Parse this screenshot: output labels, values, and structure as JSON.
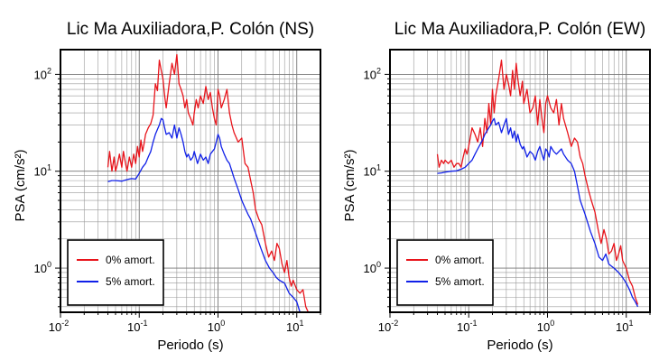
{
  "chart_data": [
    {
      "type": "line",
      "title": "Lic Ma Auxiliadora,P. Colón (NS)",
      "xlabel": "Periodo (s)",
      "ylabel": "PSA (cm/s²)",
      "xscale": "log",
      "yscale": "log",
      "xlim": [
        0.01,
        20
      ],
      "ylim": [
        0.35,
        180
      ],
      "grid": true,
      "legend_position": "bottom-left",
      "colors": {
        "0% amort.": "#e8141b",
        "5% amort.": "#1020e8"
      },
      "series": [
        {
          "name": "0% amort.",
          "x": [
            0.04,
            0.042,
            0.045,
            0.048,
            0.05,
            0.053,
            0.056,
            0.06,
            0.063,
            0.067,
            0.07,
            0.075,
            0.08,
            0.085,
            0.09,
            0.095,
            0.1,
            0.105,
            0.11,
            0.115,
            0.12,
            0.13,
            0.14,
            0.15,
            0.16,
            0.17,
            0.18,
            0.19,
            0.2,
            0.21,
            0.22,
            0.24,
            0.26,
            0.28,
            0.3,
            0.32,
            0.34,
            0.36,
            0.38,
            0.4,
            0.42,
            0.45,
            0.48,
            0.5,
            0.53,
            0.56,
            0.6,
            0.65,
            0.7,
            0.75,
            0.8,
            0.85,
            0.9,
            0.95,
            1.0,
            1.05,
            1.1,
            1.2,
            1.3,
            1.4,
            1.5,
            1.6,
            1.8,
            2.0,
            2.2,
            2.4,
            2.6,
            2.8,
            3.0,
            3.3,
            3.6,
            4.0,
            4.4,
            4.8,
            5.2,
            5.6,
            6.0,
            6.5,
            7.0,
            7.5,
            8.0,
            8.5,
            9.0,
            10.0,
            11.0,
            12.0,
            13.0,
            14.0
          ],
          "y": [
            11,
            16,
            10,
            14,
            10,
            12,
            15,
            11,
            16,
            12,
            10,
            14,
            11,
            15,
            12,
            18,
            14,
            21,
            16,
            19,
            24,
            28,
            31,
            38,
            80,
            68,
            140,
            110,
            90,
            60,
            45,
            80,
            130,
            100,
            160,
            80,
            70,
            60,
            45,
            55,
            40,
            35,
            30,
            40,
            55,
            45,
            60,
            50,
            75,
            55,
            65,
            45,
            35,
            30,
            70,
            60,
            45,
            55,
            70,
            40,
            30,
            25,
            20,
            22,
            12,
            11,
            8,
            6,
            4,
            3.2,
            2.8,
            1.8,
            1.3,
            1.5,
            1.2,
            1.8,
            1.6,
            1.1,
            0.9,
            1.2,
            0.8,
            0.65,
            0.75,
            0.6,
            0.55,
            0.6,
            0.4,
            0.3
          ]
        },
        {
          "name": "5% amort.",
          "x": [
            0.04,
            0.045,
            0.05,
            0.06,
            0.07,
            0.075,
            0.08,
            0.09,
            0.1,
            0.11,
            0.12,
            0.13,
            0.14,
            0.15,
            0.16,
            0.17,
            0.18,
            0.19,
            0.2,
            0.21,
            0.22,
            0.24,
            0.26,
            0.28,
            0.3,
            0.32,
            0.34,
            0.36,
            0.38,
            0.4,
            0.42,
            0.45,
            0.48,
            0.5,
            0.55,
            0.6,
            0.65,
            0.7,
            0.75,
            0.8,
            0.85,
            0.9,
            0.95,
            1.0,
            1.05,
            1.1,
            1.2,
            1.3,
            1.4,
            1.5,
            1.6,
            1.8,
            2.0,
            2.2,
            2.4,
            2.6,
            3.0,
            3.5,
            4.0,
            4.5,
            5.0,
            5.5,
            6.0,
            7.0,
            8.0,
            9.0,
            10.0,
            11.0,
            12.0
          ],
          "y": [
            7.8,
            8,
            8,
            7.9,
            8.2,
            8.3,
            8.4,
            8.3,
            9.5,
            11,
            12,
            14,
            16,
            20,
            24,
            27,
            30,
            35,
            34,
            28,
            24,
            25,
            22,
            30,
            22,
            28,
            24,
            20,
            16,
            14,
            15,
            13,
            14,
            16,
            12,
            15,
            13,
            14,
            12,
            15,
            16,
            17,
            20,
            24,
            22,
            18,
            15,
            13,
            12,
            10,
            8.5,
            6.5,
            5,
            4.2,
            3.6,
            3.2,
            2.3,
            1.6,
            1.2,
            1.0,
            0.9,
            0.8,
            0.75,
            0.7,
            0.55,
            0.5,
            0.45,
            0.35,
            0.3
          ]
        }
      ]
    },
    {
      "type": "line",
      "title": "Lic Ma Auxiliadora,P. Colón (EW)",
      "xlabel": "Periodo (s)",
      "ylabel": "PSA (cm/s²)",
      "xscale": "log",
      "yscale": "log",
      "xlim": [
        0.01,
        20
      ],
      "ylim": [
        0.35,
        180
      ],
      "grid": true,
      "legend_position": "bottom-left",
      "colors": {
        "0% amort.": "#e8141b",
        "5% amort.": "#1020e8"
      },
      "series": [
        {
          "name": "0% amort.",
          "x": [
            0.04,
            0.042,
            0.045,
            0.048,
            0.05,
            0.055,
            0.06,
            0.065,
            0.07,
            0.075,
            0.08,
            0.085,
            0.09,
            0.095,
            0.1,
            0.11,
            0.12,
            0.13,
            0.14,
            0.15,
            0.16,
            0.17,
            0.18,
            0.19,
            0.2,
            0.21,
            0.22,
            0.24,
            0.26,
            0.28,
            0.3,
            0.32,
            0.34,
            0.36,
            0.38,
            0.4,
            0.42,
            0.45,
            0.48,
            0.5,
            0.55,
            0.6,
            0.65,
            0.7,
            0.75,
            0.8,
            0.85,
            0.9,
            0.95,
            1.0,
            1.1,
            1.2,
            1.3,
            1.4,
            1.5,
            1.6,
            1.8,
            2.0,
            2.2,
            2.4,
            2.6,
            2.8,
            3.0,
            3.3,
            3.6,
            4.0,
            4.4,
            4.8,
            5.2,
            5.6,
            6.0,
            6.5,
            7.0,
            7.5,
            8.0,
            8.5,
            9.0,
            10.0,
            11.0,
            12.0,
            13.0,
            14.0
          ],
          "y": [
            15,
            11,
            13,
            12,
            13,
            12,
            13,
            11,
            12,
            12,
            11,
            14,
            17,
            15,
            18,
            28,
            24,
            20,
            28,
            18,
            35,
            25,
            50,
            30,
            70,
            40,
            60,
            90,
            140,
            70,
            100,
            80,
            60,
            110,
            70,
            130,
            90,
            60,
            85,
            50,
            70,
            40,
            45,
            60,
            30,
            55,
            35,
            25,
            50,
            60,
            45,
            40,
            55,
            30,
            50,
            35,
            25,
            18,
            22,
            20,
            14,
            12,
            9,
            6.5,
            5,
            3.8,
            2.5,
            1.8,
            2.5,
            2.0,
            1.4,
            1.5,
            1.8,
            1.2,
            1.4,
            1.7,
            1.2,
            1.0,
            0.75,
            0.65,
            0.5,
            0.42
          ]
        },
        {
          "name": "5% amort.",
          "x": [
            0.04,
            0.045,
            0.05,
            0.06,
            0.07,
            0.08,
            0.09,
            0.1,
            0.11,
            0.12,
            0.13,
            0.14,
            0.15,
            0.16,
            0.17,
            0.18,
            0.19,
            0.2,
            0.21,
            0.22,
            0.24,
            0.26,
            0.28,
            0.3,
            0.32,
            0.34,
            0.36,
            0.38,
            0.4,
            0.42,
            0.45,
            0.48,
            0.5,
            0.55,
            0.6,
            0.65,
            0.7,
            0.75,
            0.8,
            0.85,
            0.9,
            0.95,
            1.0,
            1.05,
            1.1,
            1.2,
            1.3,
            1.4,
            1.5,
            1.6,
            1.8,
            2.0,
            2.2,
            2.4,
            2.6,
            3.0,
            3.5,
            4.0,
            4.5,
            5.0,
            5.5,
            6.0,
            7.0,
            8.0,
            9.0,
            10.0,
            11.0,
            12.0,
            13.0,
            14.0
          ],
          "y": [
            9.5,
            9.6,
            9.8,
            10,
            10.1,
            10.5,
            11,
            12,
            13,
            15,
            17,
            19,
            21,
            24,
            26,
            28,
            30,
            33,
            35,
            30,
            32,
            25,
            30,
            35,
            24,
            28,
            22,
            26,
            20,
            24,
            19,
            17,
            18,
            14,
            16,
            15,
            13,
            16,
            18,
            15,
            13,
            17,
            16,
            14,
            18,
            16,
            15,
            16,
            17,
            15,
            13,
            12,
            10,
            7,
            5,
            3.6,
            2.4,
            1.8,
            1.3,
            1.2,
            1.4,
            1.1,
            1.0,
            0.9,
            0.8,
            0.7,
            0.6,
            0.5,
            0.45,
            0.4
          ]
        }
      ]
    }
  ]
}
